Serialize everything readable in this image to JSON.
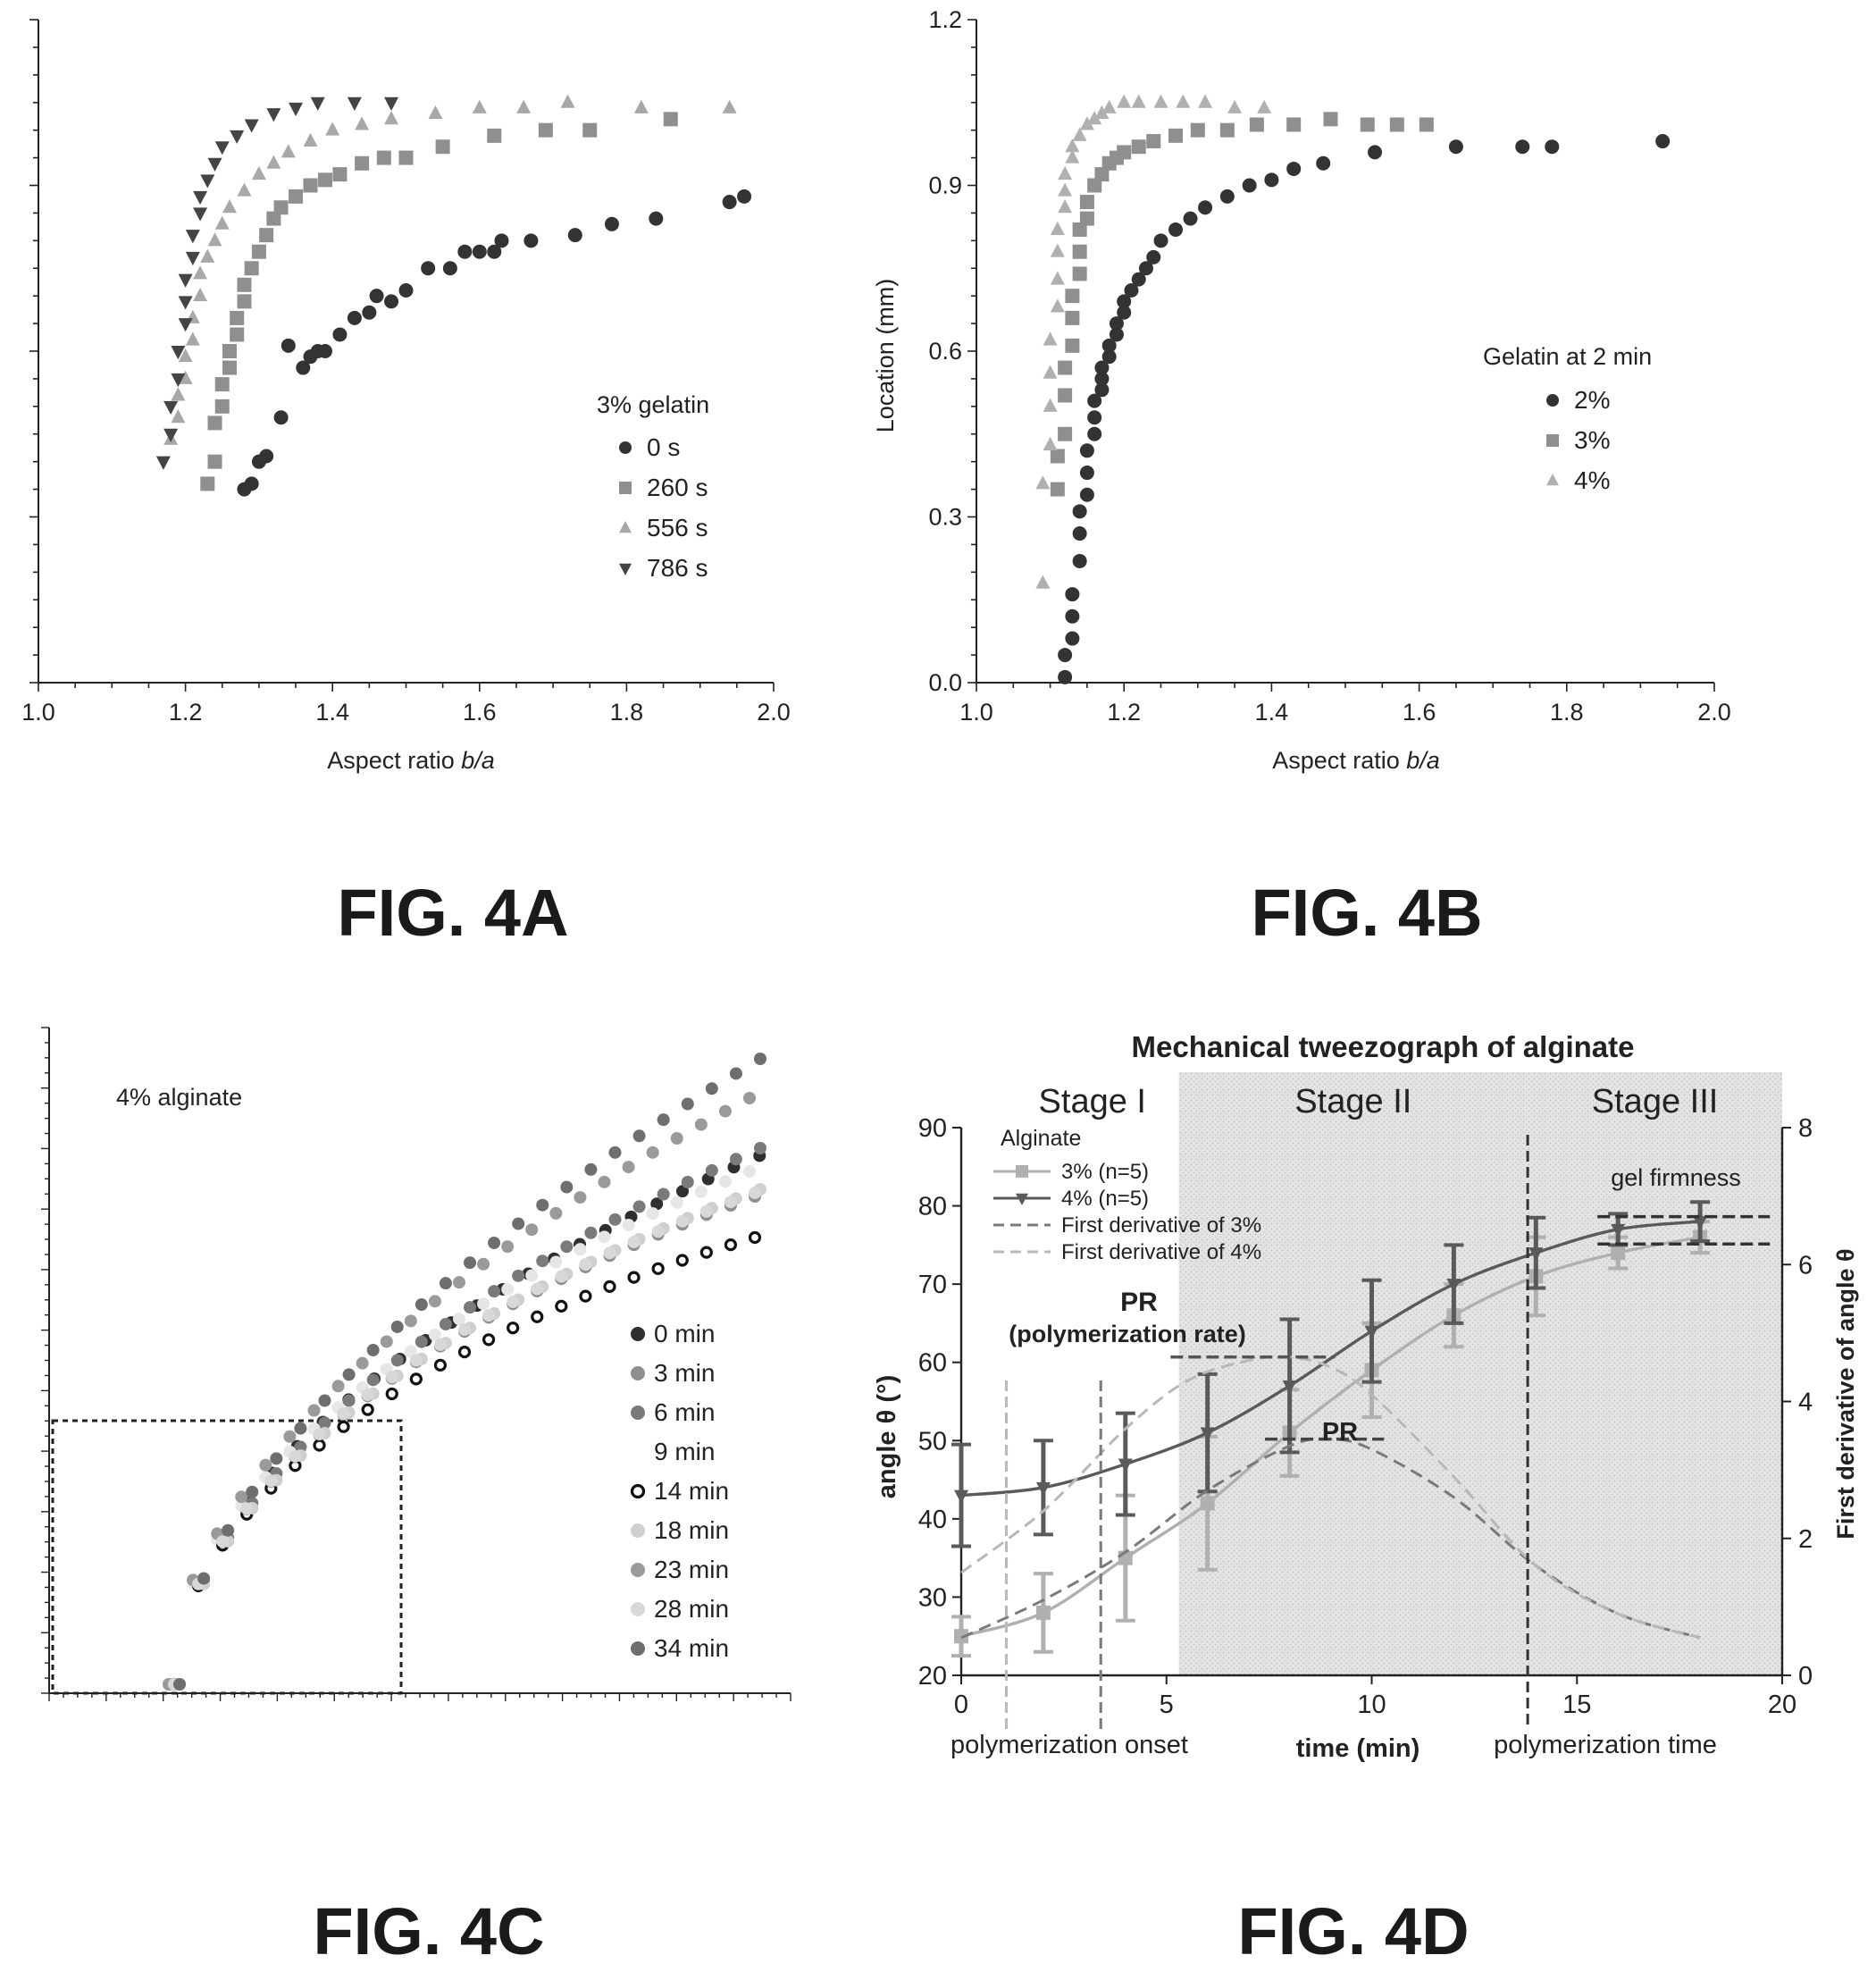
{
  "captions": {
    "a": "FIG. 4A",
    "b": "FIG. 4B",
    "c": "FIG. 4C",
    "d": "FIG. 4D"
  },
  "colors": {
    "dark": "#333333",
    "medium": "#8f8f8f",
    "light": "#b5b5b5",
    "lighter": "#cfcfcf",
    "shade": "#dedede"
  },
  "chart_data": [
    {
      "id": "fig4a",
      "type": "scatter",
      "title": "",
      "xlabel_prefix": "Aspect ratio ",
      "xlabel_italic": "b/a",
      "ylabel": "",
      "xlim": [
        1.0,
        2.0
      ],
      "ylim": [
        0.0,
        1.2
      ],
      "xticks": [
        "1.0",
        "1.2",
        "1.4",
        "1.6",
        "1.8",
        "2.0"
      ],
      "legend_title": "3% gelatin",
      "legend_position": "center-right",
      "series": [
        {
          "name": "0 s",
          "marker": "circle",
          "color": "#333333",
          "x": [
            1.28,
            1.29,
            1.3,
            1.31,
            1.33,
            1.34,
            1.36,
            1.37,
            1.38,
            1.39,
            1.41,
            1.43,
            1.45,
            1.46,
            1.48,
            1.5,
            1.53,
            1.56,
            1.58,
            1.6,
            1.62,
            1.63,
            1.67,
            1.73,
            1.78,
            1.84,
            1.94,
            1.96
          ],
          "y": [
            0.35,
            0.36,
            0.4,
            0.41,
            0.48,
            0.61,
            0.57,
            0.59,
            0.6,
            0.6,
            0.63,
            0.66,
            0.67,
            0.7,
            0.69,
            0.71,
            0.75,
            0.75,
            0.78,
            0.78,
            0.78,
            0.8,
            0.8,
            0.81,
            0.83,
            0.84,
            0.87,
            0.88
          ]
        },
        {
          "name": "260 s",
          "marker": "square",
          "color": "#8f8f8f",
          "x": [
            1.23,
            1.24,
            1.24,
            1.25,
            1.25,
            1.26,
            1.26,
            1.27,
            1.27,
            1.28,
            1.28,
            1.29,
            1.3,
            1.31,
            1.32,
            1.33,
            1.35,
            1.37,
            1.39,
            1.41,
            1.44,
            1.47,
            1.5,
            1.55,
            1.62,
            1.69,
            1.75,
            1.86
          ],
          "y": [
            0.36,
            0.4,
            0.47,
            0.5,
            0.54,
            0.57,
            0.6,
            0.63,
            0.66,
            0.69,
            0.72,
            0.75,
            0.78,
            0.81,
            0.84,
            0.86,
            0.88,
            0.9,
            0.91,
            0.92,
            0.94,
            0.95,
            0.95,
            0.97,
            0.99,
            1.0,
            1.0,
            1.02
          ]
        },
        {
          "name": "556 s",
          "marker": "triangle",
          "color": "#a8a8a8",
          "x": [
            1.18,
            1.19,
            1.19,
            1.2,
            1.2,
            1.21,
            1.21,
            1.22,
            1.22,
            1.23,
            1.24,
            1.25,
            1.26,
            1.28,
            1.3,
            1.32,
            1.34,
            1.37,
            1.4,
            1.44,
            1.48,
            1.54,
            1.6,
            1.66,
            1.72,
            1.82,
            1.94
          ],
          "y": [
            0.44,
            0.48,
            0.52,
            0.55,
            0.59,
            0.62,
            0.66,
            0.7,
            0.74,
            0.77,
            0.8,
            0.83,
            0.86,
            0.89,
            0.92,
            0.94,
            0.96,
            0.98,
            1.0,
            1.01,
            1.02,
            1.03,
            1.04,
            1.04,
            1.05,
            1.04,
            1.04
          ]
        },
        {
          "name": "786 s",
          "marker": "triangle-down",
          "color": "#444444",
          "x": [
            1.17,
            1.18,
            1.18,
            1.19,
            1.19,
            1.2,
            1.2,
            1.2,
            1.21,
            1.21,
            1.22,
            1.22,
            1.23,
            1.24,
            1.25,
            1.27,
            1.29,
            1.32,
            1.35,
            1.38,
            1.43,
            1.48
          ],
          "y": [
            0.4,
            0.45,
            0.5,
            0.55,
            0.6,
            0.65,
            0.69,
            0.73,
            0.77,
            0.81,
            0.85,
            0.88,
            0.91,
            0.94,
            0.97,
            0.99,
            1.01,
            1.03,
            1.04,
            1.05,
            1.05,
            1.05
          ]
        }
      ]
    },
    {
      "id": "fig4b",
      "type": "scatter",
      "title": "",
      "xlabel_prefix": "Aspect ratio ",
      "xlabel_italic": "b/a",
      "ylabel": "Location (mm)",
      "xlim": [
        1.0,
        2.0
      ],
      "ylim": [
        0.0,
        1.2
      ],
      "xticks": [
        "1.0",
        "1.2",
        "1.4",
        "1.6",
        "1.8",
        "2.0"
      ],
      "yticks": [
        "0.0",
        "0.3",
        "0.6",
        "0.9",
        "1.2"
      ],
      "legend_title": "Gelatin at 2 min",
      "legend_position": "center-right",
      "series": [
        {
          "name": "2%",
          "marker": "circle",
          "color": "#333333",
          "x": [
            1.12,
            1.12,
            1.13,
            1.13,
            1.13,
            1.14,
            1.14,
            1.14,
            1.15,
            1.15,
            1.15,
            1.16,
            1.16,
            1.16,
            1.17,
            1.17,
            1.17,
            1.18,
            1.18,
            1.19,
            1.19,
            1.2,
            1.2,
            1.21,
            1.22,
            1.23,
            1.24,
            1.25,
            1.27,
            1.29,
            1.31,
            1.34,
            1.37,
            1.4,
            1.43,
            1.47,
            1.54,
            1.65,
            1.74,
            1.78,
            1.93
          ],
          "y": [
            0.01,
            0.05,
            0.08,
            0.12,
            0.16,
            0.22,
            0.27,
            0.31,
            0.34,
            0.38,
            0.42,
            0.45,
            0.48,
            0.51,
            0.53,
            0.55,
            0.57,
            0.59,
            0.61,
            0.63,
            0.65,
            0.67,
            0.69,
            0.71,
            0.73,
            0.75,
            0.77,
            0.8,
            0.82,
            0.84,
            0.86,
            0.88,
            0.9,
            0.91,
            0.93,
            0.94,
            0.96,
            0.97,
            0.97,
            0.97,
            0.98
          ]
        },
        {
          "name": "3%",
          "marker": "square",
          "color": "#8f8f8f",
          "x": [
            1.11,
            1.11,
            1.12,
            1.12,
            1.12,
            1.13,
            1.13,
            1.13,
            1.14,
            1.14,
            1.14,
            1.15,
            1.15,
            1.16,
            1.17,
            1.18,
            1.19,
            1.2,
            1.22,
            1.24,
            1.27,
            1.3,
            1.34,
            1.38,
            1.43,
            1.48,
            1.53,
            1.57,
            1.61
          ],
          "y": [
            0.35,
            0.41,
            0.45,
            0.52,
            0.57,
            0.61,
            0.66,
            0.7,
            0.74,
            0.78,
            0.82,
            0.84,
            0.87,
            0.9,
            0.92,
            0.94,
            0.95,
            0.96,
            0.97,
            0.98,
            0.99,
            1.0,
            1.0,
            1.01,
            1.01,
            1.02,
            1.01,
            1.01,
            1.01
          ]
        },
        {
          "name": "4%",
          "marker": "triangle",
          "color": "#b0b0b0",
          "x": [
            1.09,
            1.09,
            1.1,
            1.1,
            1.1,
            1.1,
            1.11,
            1.11,
            1.11,
            1.11,
            1.12,
            1.12,
            1.12,
            1.13,
            1.13,
            1.14,
            1.15,
            1.16,
            1.17,
            1.18,
            1.2,
            1.22,
            1.25,
            1.28,
            1.31,
            1.35,
            1.39
          ],
          "y": [
            0.18,
            0.36,
            0.43,
            0.5,
            0.56,
            0.62,
            0.68,
            0.73,
            0.78,
            0.82,
            0.86,
            0.89,
            0.92,
            0.95,
            0.97,
            0.99,
            1.01,
            1.02,
            1.03,
            1.04,
            1.05,
            1.05,
            1.05,
            1.05,
            1.05,
            1.04,
            1.04
          ]
        }
      ]
    },
    {
      "id": "fig4c",
      "type": "scatter",
      "title": "4% alginate",
      "xlabel": "",
      "ylabel": "",
      "grid": false,
      "legend_position": "bottom-right",
      "series": [
        {
          "name": "0 min",
          "marker": "circle",
          "color": "#2f2f2f"
        },
        {
          "name": "3 min",
          "marker": "circle",
          "color": "#8f8f8f"
        },
        {
          "name": "6 min",
          "marker": "circle",
          "color": "#7a7a7a"
        },
        {
          "name": "9 min",
          "marker": "circle",
          "color": "#ffffff"
        },
        {
          "name": "14 min",
          "marker": "open-circle",
          "color": "#111111"
        },
        {
          "name": "18 min",
          "marker": "circle",
          "color": "#cfcfcf"
        },
        {
          "name": "23 min",
          "marker": "circle",
          "color": "#9a9a9a"
        },
        {
          "name": "28 min",
          "marker": "circle",
          "color": "#d8d8d8"
        },
        {
          "name": "34 min",
          "marker": "circle",
          "color": "#6e6e6e"
        }
      ]
    },
    {
      "id": "fig4d",
      "type": "line",
      "title": "Mechanical tweezograph of alginate",
      "xlabel": "time (min)",
      "ylabel": "angle θ (°)",
      "y2label": "First derivative of angle θ",
      "xlim": [
        0,
        20
      ],
      "ylim": [
        20,
        90
      ],
      "y2lim": [
        0,
        8
      ],
      "xticks": [
        "0",
        "5",
        "10",
        "15",
        "20"
      ],
      "yticks": [
        "20",
        "30",
        "40",
        "50",
        "60",
        "70",
        "80",
        "90"
      ],
      "y2ticks": [
        "0",
        "2",
        "4",
        "6",
        "8"
      ],
      "stages": [
        {
          "label": "Stage I",
          "x0": 0,
          "x1": 5.3
        },
        {
          "label": "Stage II",
          "x0": 5.3,
          "x1": 13.8
        },
        {
          "label": "Stage III",
          "x0": 13.8,
          "x1": 20
        }
      ],
      "legend_title": "Alginate",
      "legend_position": "top-left",
      "series": [
        {
          "name": "3% (n=5)",
          "axis": "left",
          "style": "solid-marker-square",
          "color": "#b0b0b0",
          "x": [
            0,
            2,
            4,
            6,
            8,
            10,
            12,
            14,
            16,
            18
          ],
          "y": [
            25,
            28,
            35,
            42,
            51,
            59,
            66,
            71,
            74,
            76
          ],
          "err": [
            2.5,
            5,
            8,
            8.5,
            5.5,
            6,
            4,
            5,
            2,
            2
          ]
        },
        {
          "name": "4% (n=5)",
          "axis": "left",
          "style": "solid-marker-triangle-down",
          "color": "#5a5a5a",
          "x": [
            0,
            2,
            4,
            6,
            8,
            10,
            12,
            14,
            16,
            18
          ],
          "y": [
            43,
            44,
            47,
            51,
            57,
            64,
            70,
            74,
            77,
            78
          ],
          "err": [
            6.5,
            6,
            6.5,
            7.5,
            8.5,
            6.5,
            5,
            4.5,
            2,
            2.5
          ]
        },
        {
          "name": "First derivative of 3%",
          "axis": "right",
          "style": "dashed",
          "color": "#7a7a7a",
          "x": [
            0,
            2,
            4,
            6,
            8,
            9,
            10,
            12,
            14,
            16,
            18
          ],
          "y": [
            0.55,
            1.1,
            1.8,
            2.7,
            3.35,
            3.45,
            3.3,
            2.6,
            1.6,
            0.9,
            0.55
          ]
        },
        {
          "name": "First derivative of 4%",
          "axis": "right",
          "style": "dashed",
          "color": "#b8b8b8",
          "x": [
            0,
            2,
            4,
            5.5,
            7,
            8,
            9,
            10,
            12,
            14,
            16,
            18
          ],
          "y": [
            1.5,
            2.4,
            3.6,
            4.3,
            4.6,
            4.65,
            4.5,
            4.1,
            2.9,
            1.6,
            0.9,
            0.55
          ]
        }
      ],
      "annotations": {
        "pr_label_1": "PR",
        "pr_label_1_sub": "(polymerization rate)",
        "pr_label_2": "PR",
        "gel_firmness": "gel firmness",
        "onset": "polymerization onset",
        "time": "polymerization time"
      }
    }
  ]
}
